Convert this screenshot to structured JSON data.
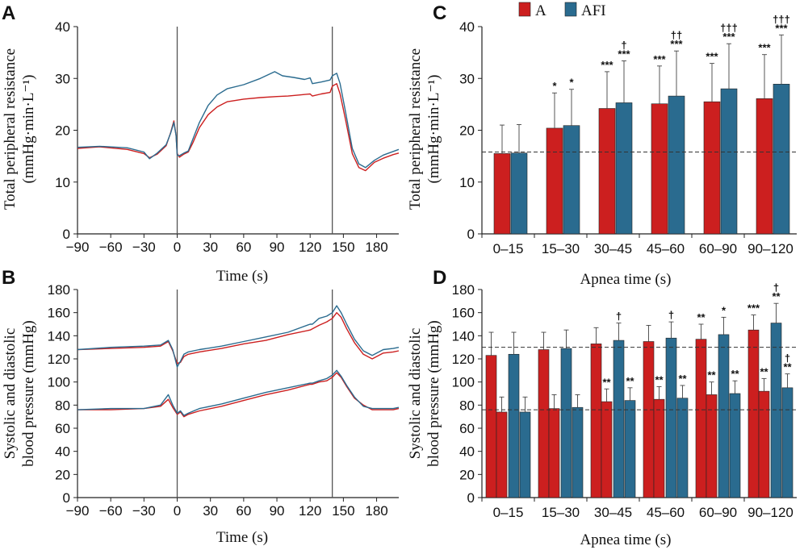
{
  "colors": {
    "A": "#cc1f1f",
    "AFI": "#2a6b8f",
    "axis": "#222222",
    "marker": "#555555"
  },
  "panels": {
    "A": "A",
    "B": "B",
    "C": "C",
    "D": "D"
  },
  "legend": {
    "a": "A",
    "afi": "AFI"
  },
  "chart_data": [
    {
      "id": "A",
      "type": "line",
      "xlabel": "Time (s)",
      "ylabel_line1": "Total peripheral resistance",
      "ylabel_line2": "(mmHg·min·L⁻¹)",
      "xlim": [
        -90,
        200
      ],
      "ylim": [
        0,
        40
      ],
      "xticks": [
        -90,
        -60,
        -30,
        0,
        30,
        60,
        90,
        120,
        150,
        180
      ],
      "yticks": [
        0,
        10,
        20,
        30,
        40
      ],
      "markers": [
        0,
        140
      ],
      "series": [
        {
          "name": "A",
          "points": [
            [
              -90,
              16.5
            ],
            [
              -70,
              16.8
            ],
            [
              -45,
              16.3
            ],
            [
              -30,
              15.5
            ],
            [
              -25,
              14.7
            ],
            [
              -18,
              15.4
            ],
            [
              -10,
              17
            ],
            [
              -6,
              19.5
            ],
            [
              -3,
              21.8
            ],
            [
              -1,
              19
            ],
            [
              0,
              15.5
            ],
            [
              2,
              14.8
            ],
            [
              6,
              15.4
            ],
            [
              10,
              15.8
            ],
            [
              14,
              17.5
            ],
            [
              20,
              20.5
            ],
            [
              28,
              23
            ],
            [
              36,
              24.5
            ],
            [
              45,
              25.5
            ],
            [
              60,
              26
            ],
            [
              75,
              26.3
            ],
            [
              90,
              26.5
            ],
            [
              100,
              26.6
            ],
            [
              110,
              26.8
            ],
            [
              120,
              27
            ],
            [
              122,
              26.6
            ],
            [
              130,
              27
            ],
            [
              138,
              27.3
            ],
            [
              140,
              28.5
            ],
            [
              144,
              29
            ],
            [
              147,
              27
            ],
            [
              152,
              22
            ],
            [
              158,
              15.5
            ],
            [
              164,
              12.8
            ],
            [
              170,
              12.2
            ],
            [
              178,
              13.8
            ],
            [
              186,
              14.6
            ],
            [
              195,
              15.3
            ],
            [
              200,
              15.6
            ]
          ]
        },
        {
          "name": "AFI",
          "points": [
            [
              -90,
              16.7
            ],
            [
              -70,
              16.9
            ],
            [
              -45,
              16.6
            ],
            [
              -30,
              15.8
            ],
            [
              -25,
              14.5
            ],
            [
              -18,
              15.6
            ],
            [
              -10,
              17.2
            ],
            [
              -6,
              19.4
            ],
            [
              -3,
              21.5
            ],
            [
              -1,
              19
            ],
            [
              0,
              15.2
            ],
            [
              2,
              15.1
            ],
            [
              6,
              15.6
            ],
            [
              10,
              16
            ],
            [
              14,
              18.2
            ],
            [
              20,
              21.5
            ],
            [
              28,
              24.8
            ],
            [
              36,
              26.8
            ],
            [
              45,
              28
            ],
            [
              60,
              28.8
            ],
            [
              75,
              30
            ],
            [
              88,
              31.3
            ],
            [
              95,
              30.5
            ],
            [
              105,
              30.2
            ],
            [
              115,
              29.8
            ],
            [
              120,
              30.1
            ],
            [
              122,
              29
            ],
            [
              130,
              29.3
            ],
            [
              138,
              29.7
            ],
            [
              140,
              30.5
            ],
            [
              144,
              31
            ],
            [
              147,
              29
            ],
            [
              152,
              23.5
            ],
            [
              158,
              16.5
            ],
            [
              164,
              13.5
            ],
            [
              170,
              12.8
            ],
            [
              178,
              14.2
            ],
            [
              186,
              15.2
            ],
            [
              195,
              15.9
            ],
            [
              200,
              16.3
            ]
          ]
        }
      ]
    },
    {
      "id": "B",
      "type": "line",
      "xlabel": "Time (s)",
      "ylabel_line1": "Systolic and diastolic",
      "ylabel_line2": "blood pressure (mmHg)",
      "xlim": [
        -90,
        200
      ],
      "ylim": [
        0,
        180
      ],
      "xticks": [
        -90,
        -60,
        -30,
        0,
        30,
        60,
        90,
        120,
        150,
        180
      ],
      "yticks": [
        0,
        20,
        40,
        60,
        80,
        100,
        120,
        140,
        160,
        180
      ],
      "markers": [
        0,
        140
      ],
      "series": [
        {
          "name": "A systolic",
          "points": [
            [
              -90,
              128
            ],
            [
              -60,
              129
            ],
            [
              -30,
              130
            ],
            [
              -15,
              131
            ],
            [
              -8,
              135
            ],
            [
              -4,
              127
            ],
            [
              0,
              116
            ],
            [
              3,
              117
            ],
            [
              6,
              122
            ],
            [
              10,
              124
            ],
            [
              20,
              126
            ],
            [
              40,
              129
            ],
            [
              60,
              133
            ],
            [
              80,
              136
            ],
            [
              100,
              141
            ],
            [
              120,
              145
            ],
            [
              122,
              146
            ],
            [
              128,
              149
            ],
            [
              135,
              152
            ],
            [
              140,
              155
            ],
            [
              144,
              160
            ],
            [
              148,
              156
            ],
            [
              153,
              146
            ],
            [
              160,
              134
            ],
            [
              168,
              124
            ],
            [
              176,
              120
            ],
            [
              186,
              125
            ],
            [
              195,
              126
            ],
            [
              200,
              127
            ]
          ]
        },
        {
          "name": "AFI systolic",
          "points": [
            [
              -90,
              128
            ],
            [
              -60,
              130
            ],
            [
              -30,
              131
            ],
            [
              -15,
              132
            ],
            [
              -8,
              136
            ],
            [
              -4,
              128
            ],
            [
              0,
              113
            ],
            [
              3,
              118
            ],
            [
              6,
              124
            ],
            [
              10,
              126
            ],
            [
              20,
              128
            ],
            [
              40,
              131
            ],
            [
              60,
              135
            ],
            [
              80,
              139
            ],
            [
              100,
              143
            ],
            [
              120,
              150
            ],
            [
              122,
              150
            ],
            [
              128,
              155
            ],
            [
              135,
              157
            ],
            [
              140,
              160
            ],
            [
              144,
              166
            ],
            [
              148,
              160
            ],
            [
              153,
              150
            ],
            [
              160,
              137
            ],
            [
              168,
              127
            ],
            [
              176,
              123
            ],
            [
              186,
              128
            ],
            [
              195,
              129
            ],
            [
              200,
              130
            ]
          ]
        },
        {
          "name": "A diastolic",
          "points": [
            [
              -90,
              76
            ],
            [
              -60,
              76
            ],
            [
              -30,
              77
            ],
            [
              -15,
              79
            ],
            [
              -8,
              85
            ],
            [
              -4,
              78
            ],
            [
              0,
              72
            ],
            [
              3,
              74
            ],
            [
              6,
              70
            ],
            [
              10,
              72
            ],
            [
              20,
              75
            ],
            [
              40,
              79
            ],
            [
              60,
              84
            ],
            [
              80,
              89
            ],
            [
              100,
              93
            ],
            [
              120,
              98
            ],
            [
              122,
              98
            ],
            [
              128,
              100
            ],
            [
              135,
              101
            ],
            [
              140,
              104
            ],
            [
              144,
              108
            ],
            [
              148,
              104
            ],
            [
              153,
              96
            ],
            [
              160,
              86
            ],
            [
              168,
              80
            ],
            [
              176,
              76
            ],
            [
              186,
              76
            ],
            [
              195,
              76
            ],
            [
              200,
              77
            ]
          ]
        },
        {
          "name": "AFI diastolic",
          "points": [
            [
              -90,
              76
            ],
            [
              -60,
              77
            ],
            [
              -30,
              77
            ],
            [
              -15,
              80
            ],
            [
              -8,
              89
            ],
            [
              -4,
              80
            ],
            [
              0,
              73
            ],
            [
              3,
              75
            ],
            [
              6,
              71
            ],
            [
              10,
              73
            ],
            [
              20,
              77
            ],
            [
              40,
              81
            ],
            [
              60,
              86
            ],
            [
              80,
              91
            ],
            [
              100,
              95
            ],
            [
              120,
              99
            ],
            [
              122,
              99
            ],
            [
              128,
              101
            ],
            [
              135,
              103
            ],
            [
              140,
              106
            ],
            [
              144,
              110
            ],
            [
              148,
              105
            ],
            [
              153,
              97
            ],
            [
              160,
              87
            ],
            [
              168,
              79
            ],
            [
              176,
              77
            ],
            [
              186,
              77
            ],
            [
              195,
              77
            ],
            [
              200,
              78
            ]
          ]
        }
      ]
    },
    {
      "id": "C",
      "type": "bar",
      "xlabel": "Apnea time (s)",
      "ylabel_line1": "Total peripheral resistance",
      "ylabel_line2": "(mmHg·min·L⁻¹)",
      "ylim": [
        0,
        40
      ],
      "yticks": [
        0,
        10,
        20,
        30,
        40
      ],
      "categories": [
        "0–15",
        "15–30",
        "30–45",
        "45–60",
        "60–90",
        "90–120"
      ],
      "reference_lines": [
        15.8
      ],
      "series": [
        {
          "name": "A",
          "values": [
            15.5,
            20.4,
            24.2,
            25.1,
            25.5,
            26.1
          ],
          "errors": [
            5.5,
            6.8,
            7.1,
            7.3,
            7.4,
            8.5
          ],
          "sig": [
            "",
            "*",
            "***",
            "***",
            "***",
            "***"
          ],
          "dagger": [
            "",
            "",
            "",
            "",
            "",
            ""
          ]
        },
        {
          "name": "AFI",
          "values": [
            15.6,
            20.9,
            25.3,
            26.6,
            28.0,
            28.9
          ],
          "errors": [
            5.5,
            7.0,
            8.1,
            8.7,
            8.7,
            9.5
          ],
          "sig": [
            "",
            "*",
            "***",
            "***",
            "***",
            "***"
          ],
          "dagger": [
            "",
            "",
            "†",
            "††",
            "†††",
            "†††"
          ]
        }
      ]
    },
    {
      "id": "D",
      "type": "bar",
      "xlabel": "Apnea time (s)",
      "ylabel_line1": "Systolic and diastolic",
      "ylabel_line2": "blood pressure (mmHg)",
      "ylim": [
        0,
        180
      ],
      "yticks": [
        0,
        20,
        40,
        60,
        80,
        100,
        120,
        140,
        160,
        180
      ],
      "categories": [
        "0–15",
        "15–30",
        "30–45",
        "45–60",
        "60–90",
        "90–120"
      ],
      "reference_lines": [
        130,
        76
      ],
      "series": [
        {
          "name": "A systolic",
          "values": [
            123,
            128,
            133,
            135,
            137,
            145
          ],
          "errors": [
            20,
            15,
            14,
            14,
            13,
            13
          ],
          "sig": [
            "",
            "",
            "",
            "",
            "**",
            "***"
          ],
          "dagger": [
            "",
            "",
            "",
            "",
            "",
            ""
          ]
        },
        {
          "name": "A diastolic",
          "values": [
            74,
            77,
            83,
            85,
            89,
            92
          ],
          "errors": [
            13,
            12,
            11,
            11,
            11,
            11
          ],
          "sig": [
            "",
            "",
            "**",
            "**",
            "**",
            "**"
          ],
          "dagger": [
            "",
            "",
            "",
            "",
            "",
            ""
          ]
        },
        {
          "name": "AFI systolic",
          "values": [
            124,
            129,
            136,
            138,
            141,
            151
          ],
          "errors": [
            19,
            16,
            15,
            14,
            15,
            17
          ],
          "sig": [
            "",
            "",
            "",
            "",
            "*",
            "**"
          ],
          "dagger": [
            "",
            "",
            "†",
            "†",
            "",
            "†"
          ]
        },
        {
          "name": "AFI diastolic",
          "values": [
            74,
            78,
            84,
            86,
            90,
            95
          ],
          "errors": [
            13,
            11,
            11,
            11,
            11,
            12
          ],
          "sig": [
            "",
            "",
            "**",
            "**",
            "**",
            "**"
          ],
          "dagger": [
            "",
            "",
            "",
            "",
            "",
            "†"
          ]
        }
      ]
    }
  ]
}
